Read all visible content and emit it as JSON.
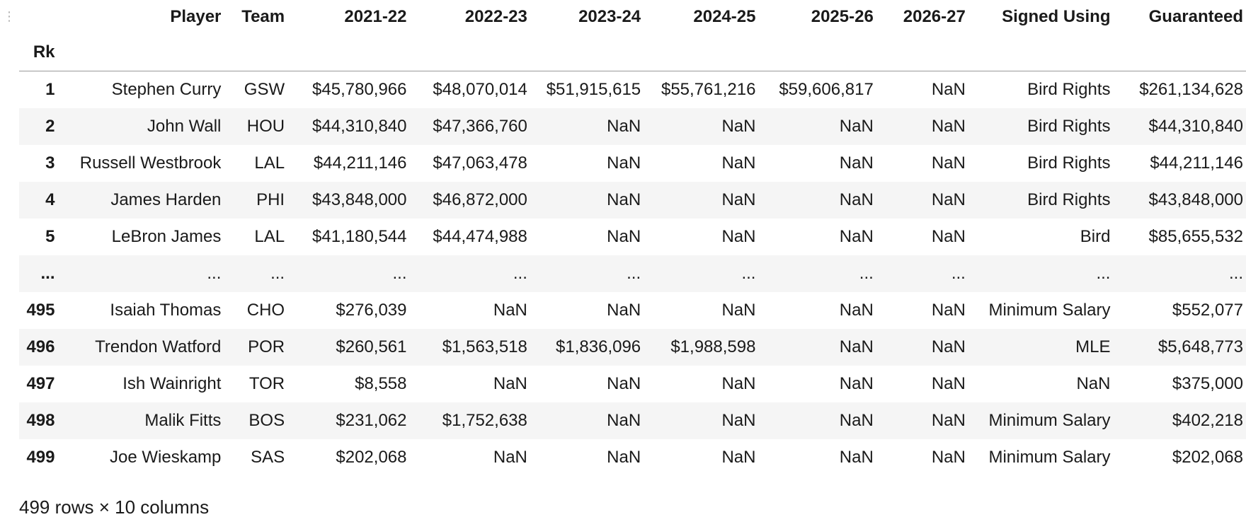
{
  "table": {
    "index_name": "Rk",
    "columns": [
      "Player",
      "Team",
      "2021-22",
      "2022-23",
      "2023-24",
      "2024-25",
      "2025-26",
      "2026-27",
      "Signed Using",
      "Guaranteed"
    ],
    "rows": [
      {
        "rk": "1",
        "cells": [
          "Stephen Curry",
          "GSW",
          "$45,780,966",
          "$48,070,014",
          "$51,915,615",
          "$55,761,216",
          "$59,606,817",
          "NaN",
          "Bird Rights",
          "$261,134,628"
        ]
      },
      {
        "rk": "2",
        "cells": [
          "John Wall",
          "HOU",
          "$44,310,840",
          "$47,366,760",
          "NaN",
          "NaN",
          "NaN",
          "NaN",
          "Bird Rights",
          "$44,310,840"
        ]
      },
      {
        "rk": "3",
        "cells": [
          "Russell Westbrook",
          "LAL",
          "$44,211,146",
          "$47,063,478",
          "NaN",
          "NaN",
          "NaN",
          "NaN",
          "Bird Rights",
          "$44,211,146"
        ]
      },
      {
        "rk": "4",
        "cells": [
          "James Harden",
          "PHI",
          "$43,848,000",
          "$46,872,000",
          "NaN",
          "NaN",
          "NaN",
          "NaN",
          "Bird Rights",
          "$43,848,000"
        ]
      },
      {
        "rk": "5",
        "cells": [
          "LeBron James",
          "LAL",
          "$41,180,544",
          "$44,474,988",
          "NaN",
          "NaN",
          "NaN",
          "NaN",
          "Bird",
          "$85,655,532"
        ]
      },
      {
        "rk": "...",
        "cells": [
          "...",
          "...",
          "...",
          "...",
          "...",
          "...",
          "...",
          "...",
          "...",
          "..."
        ]
      },
      {
        "rk": "495",
        "cells": [
          "Isaiah Thomas",
          "CHO",
          "$276,039",
          "NaN",
          "NaN",
          "NaN",
          "NaN",
          "NaN",
          "Minimum Salary",
          "$552,077"
        ]
      },
      {
        "rk": "496",
        "cells": [
          "Trendon Watford",
          "POR",
          "$260,561",
          "$1,563,518",
          "$1,836,096",
          "$1,988,598",
          "NaN",
          "NaN",
          "MLE",
          "$5,648,773"
        ]
      },
      {
        "rk": "497",
        "cells": [
          "Ish Wainright",
          "TOR",
          "$8,558",
          "NaN",
          "NaN",
          "NaN",
          "NaN",
          "NaN",
          "NaN",
          "$375,000"
        ]
      },
      {
        "rk": "498",
        "cells": [
          "Malik Fitts",
          "BOS",
          "$231,062",
          "$1,752,638",
          "NaN",
          "NaN",
          "NaN",
          "NaN",
          "Minimum Salary",
          "$402,218"
        ]
      },
      {
        "rk": "499",
        "cells": [
          "Joe Wieskamp",
          "SAS",
          "$202,068",
          "NaN",
          "NaN",
          "NaN",
          "NaN",
          "NaN",
          "Minimum Salary",
          "$202,068"
        ]
      }
    ]
  },
  "footer": {
    "shape_text": "499 rows × 10 columns"
  },
  "icons": {
    "drag_handle": "drag-handle-icon"
  }
}
